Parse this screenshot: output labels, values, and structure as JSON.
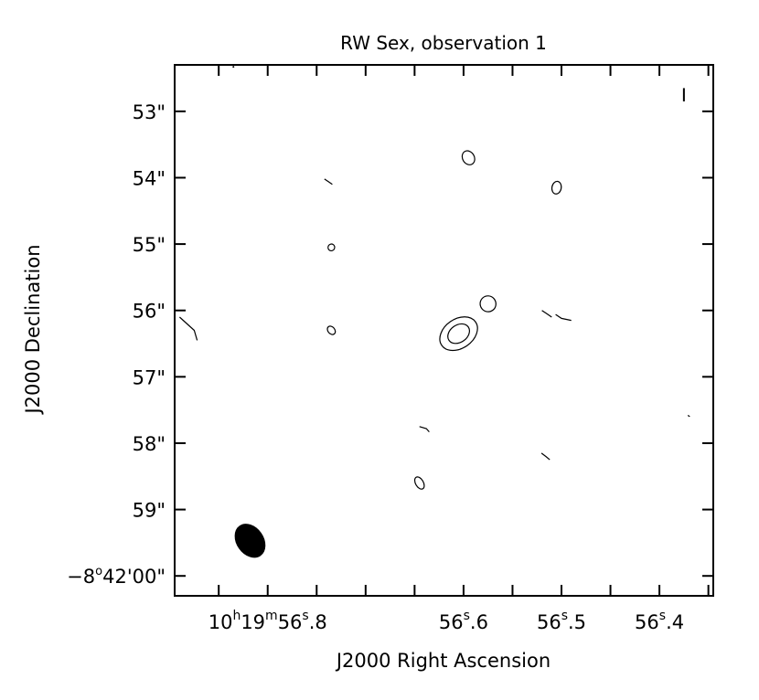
{
  "chart_data": {
    "type": "contour",
    "title": "RW Sex, observation 1",
    "xlabel": "J2000 Right Ascension",
    "ylabel": "J2000 Declination",
    "x_units": "seconds of RA (10h19m + x s)",
    "y_units": "arcsec (-8°42' + y\")",
    "xlim": [
      56.895,
      56.345
    ],
    "ylim": [
      52.3,
      60.3
    ],
    "x_ticks": [
      {
        "value": 56.8,
        "label": "10h19m56s.8",
        "sup_h": "h",
        "sup_m": "m",
        "sup_s": "s",
        "labeled": true,
        "prefix": "10",
        "mid1": "19",
        "mid2": "56",
        "frac": ".8"
      },
      {
        "value": 56.7,
        "labeled": false
      },
      {
        "value": 56.6,
        "label": "56s.6",
        "labeled": true,
        "prefix": "56",
        "frac": ".6"
      },
      {
        "value": 56.5,
        "label": "56s.5",
        "labeled": true,
        "prefix": "56",
        "frac": ".5"
      },
      {
        "value": 56.4,
        "label": "56s.4",
        "labeled": true,
        "prefix": "56",
        "frac": ".4"
      }
    ],
    "y_ticks": [
      {
        "value": 53,
        "label": "53\""
      },
      {
        "value": 54,
        "label": "54\""
      },
      {
        "value": 55,
        "label": "55\""
      },
      {
        "value": 56,
        "label": "56\""
      },
      {
        "value": 57,
        "label": "57\""
      },
      {
        "value": 58,
        "label": "58\""
      },
      {
        "value": 59,
        "label": "59\""
      },
      {
        "value": 60,
        "label": "−8°42'00\"",
        "deg_prefix": "−8",
        "deg_sup": "o",
        "deg_rest": "42'00\""
      }
    ],
    "minor_x_ticks": [
      56.85,
      56.75,
      56.65,
      56.55,
      56.45,
      56.35
    ],
    "contours": [
      {
        "cx": 56.605,
        "cy": 56.35,
        "rx_s": 0.021,
        "ry_as": 0.22,
        "angle": -35
      },
      {
        "cx": 56.605,
        "cy": 56.35,
        "rx_s": 0.012,
        "ry_as": 0.13,
        "angle": -35
      },
      {
        "cx": 56.575,
        "cy": 55.9,
        "rx_s": 0.008,
        "ry_as": 0.12,
        "angle": -40
      },
      {
        "cx": 56.595,
        "cy": 53.7,
        "rx_s": 0.006,
        "ry_as": 0.11,
        "angle": -30
      },
      {
        "cx": 56.505,
        "cy": 54.15,
        "rx_s": 0.0065,
        "ry_as": 0.07,
        "angle": -80
      },
      {
        "cx": 56.735,
        "cy": 55.05,
        "rx_s": 0.0035,
        "ry_as": 0.05,
        "angle": -60
      },
      {
        "cx": 56.735,
        "cy": 56.3,
        "rx_s": 0.0035,
        "ry_as": 0.07,
        "angle": -40
      },
      {
        "cx": 56.645,
        "cy": 58.6,
        "rx_s": 0.004,
        "ry_as": 0.1,
        "angle": -30
      }
    ],
    "open_contours": [
      {
        "d_points": [
          [
            56.742,
            54.02
          ],
          [
            56.738,
            54.06
          ],
          [
            56.734,
            54.1
          ]
        ]
      },
      {
        "d_points": [
          [
            56.52,
            56.0
          ],
          [
            56.515,
            56.05
          ],
          [
            56.51,
            56.1
          ]
        ]
      },
      {
        "d_points": [
          [
            56.506,
            56.06
          ],
          [
            56.5,
            56.12
          ],
          [
            56.49,
            56.15
          ]
        ]
      },
      {
        "d_points": [
          [
            56.645,
            57.75
          ],
          [
            56.638,
            57.78
          ],
          [
            56.635,
            57.83
          ]
        ]
      },
      {
        "d_points": [
          [
            56.5205,
            58.15
          ],
          [
            56.516,
            58.2
          ],
          [
            56.512,
            58.25
          ]
        ]
      },
      {
        "d_points": [
          [
            56.89,
            56.1
          ],
          [
            56.875,
            56.3
          ],
          [
            56.872,
            56.45
          ]
        ]
      },
      {
        "d_points": [
          [
            56.371,
            57.58
          ],
          [
            56.369,
            57.6
          ]
        ]
      }
    ],
    "beam": {
      "cx": 56.818,
      "cy": 59.47,
      "rx_s": 0.0135,
      "ry_as": 0.27,
      "angle": -35,
      "fill": "#000000"
    },
    "marker": {
      "x": 56.375,
      "y": 52.75,
      "len_as": 0.2
    },
    "colors": {
      "contour": "#000000",
      "frame": "#000000",
      "background": "#ffffff"
    }
  }
}
